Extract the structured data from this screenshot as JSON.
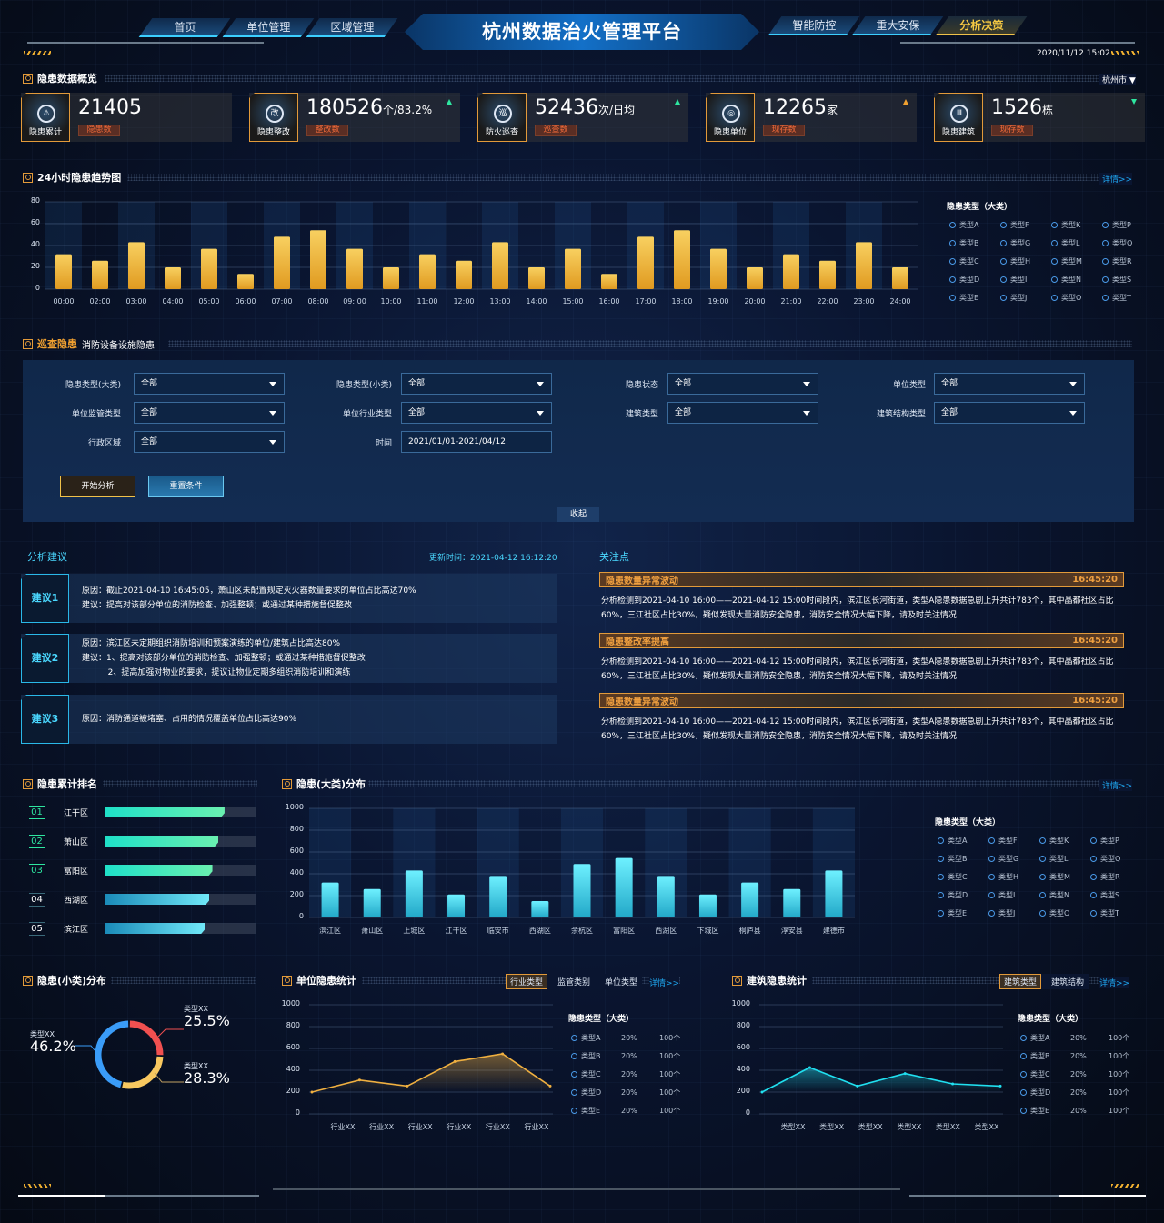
{
  "header": {
    "title": "杭州数据治火管理平台",
    "nav_left": [
      "首页",
      "单位管理",
      "区域管理"
    ],
    "nav_right": [
      "智能防控",
      "重大安保",
      "分析决策"
    ],
    "active_nav": "分析决策",
    "datetime": "2020/11/12 15:02"
  },
  "overview": {
    "title": "隐患数据概览",
    "city_select": "杭州市",
    "cards": [
      {
        "icon": "warning-icon",
        "glyph": "⚠",
        "label": "隐患累计",
        "value": "21405",
        "unit": "",
        "tag": "隐患数",
        "trend": ""
      },
      {
        "icon": "rectify-icon",
        "glyph": "改",
        "label": "隐患整改",
        "value": "180526",
        "unit": "个/83.2%",
        "tag": "整改数",
        "trend": "up"
      },
      {
        "icon": "patrol-icon",
        "glyph": "巡",
        "label": "防火巡查",
        "value": "52436",
        "unit": "次/日均",
        "tag": "巡查数",
        "trend": "up"
      },
      {
        "icon": "target-icon",
        "glyph": "◎",
        "label": "隐患单位",
        "value": "12265",
        "unit": "家",
        "tag": "现存数",
        "trend": "warn"
      },
      {
        "icon": "building-icon",
        "glyph": "Ⅲ",
        "label": "隐患建筑",
        "value": "1526",
        "unit": "栋",
        "tag": "现存数",
        "trend": "down"
      }
    ],
    "colors": {
      "accent": "#e29a3a",
      "up": "#2ee6a0",
      "warn": "#f0a030",
      "tag_text": "#f06a3a"
    }
  },
  "trend": {
    "title": "24小时隐患趋势图",
    "detail_link": "详情>>",
    "legend_title": "隐患类型（大类）",
    "legend": [
      "类型A",
      "类型B",
      "类型C",
      "类型D",
      "类型E",
      "类型F",
      "类型G",
      "类型H",
      "类型I",
      "类型J",
      "类型K",
      "类型L",
      "类型M",
      "类型N",
      "类型O",
      "类型P",
      "类型Q",
      "类型R",
      "类型S",
      "类型T"
    ]
  },
  "patrol": {
    "title": "巡查隐患",
    "subtitle": "消防设备设施隐患",
    "filters": [
      {
        "label": "隐患类型(大类)",
        "value": "全部",
        "type": "select"
      },
      {
        "label": "隐患类型(小类)",
        "value": "全部",
        "type": "select"
      },
      {
        "label": "隐患状态",
        "value": "全部",
        "type": "select"
      },
      {
        "label": "单位类型",
        "value": "全部",
        "type": "select"
      },
      {
        "label": "单位监管类型",
        "value": "全部",
        "type": "select"
      },
      {
        "label": "单位行业类型",
        "value": "全部",
        "type": "select"
      },
      {
        "label": "建筑类型",
        "value": "全部",
        "type": "select"
      },
      {
        "label": "建筑结构类型",
        "value": "全部",
        "type": "select"
      },
      {
        "label": "行政区域",
        "value": "全部",
        "type": "select"
      },
      {
        "label": "时间",
        "value": "2021/01/01-2021/04/12",
        "type": "input"
      }
    ],
    "start_button": "开始分析",
    "reset_button": "重置条件",
    "collapse": "收起"
  },
  "suggestions": {
    "title": "分析建议",
    "updated": "更新时间：2021-04-12 16:12:20",
    "items": [
      {
        "label": "建议1",
        "text": "原因：截止2021-04-10 16:45:05，萧山区未配置规定灭火器数量要求的单位占比高达70%\n建议：提高对该部分单位的消防检查、加强整顿；或通过某种措施督促整改"
      },
      {
        "label": "建议2",
        "text": "原因：滨江区未定期组织消防培训和预案演练的单位/建筑占比高达80%\n建议：1、提高对该部分单位的消防检查、加强整顿；或通过某种措施督促整改\n          2、提高加强对物业的要求，提议让物业定期多组织消防培训和演练"
      },
      {
        "label": "建议3",
        "text": "原因：消防通道被堵塞、占用的情况覆盖单位占比高达90%"
      }
    ]
  },
  "focus": {
    "title": "关注点",
    "items": [
      {
        "title": "隐患数量异常波动",
        "time": "16:45:20",
        "text": "分析检测到2021-04-10 16:00——2021-04-12 15:00时间段内，滨江区长河街道，类型A隐患数据急剧上升共计783个，其中晶都社区占比60%，三江社区占比30%，疑似发现大量消防安全隐患，消防安全情况大幅下降，请及时关注情况"
      },
      {
        "title": "隐患整改率提高",
        "time": "16:45:20",
        "text": "分析检测到2021-04-10 16:00——2021-04-12 15:00时间段内，滨江区长河街道，类型A隐患数据急剧上升共计783个，其中晶都社区占比60%，三江社区占比30%，疑似发现大量消防安全隐患，消防安全情况大幅下降，请及时关注情况"
      },
      {
        "title": "隐患数量异常波动",
        "time": "16:45:20",
        "text": "分析检测到2021-04-10 16:00——2021-04-12 15:00时间段内，滨江区长河街道，类型A隐患数据急剧上升共计783个，其中晶都社区占比60%，三江社区占比30%，疑似发现大量消防安全隐患，消防安全情况大幅下降，请及时关注情况"
      }
    ]
  },
  "ranking": {
    "title": "隐患累计排名",
    "items": [
      {
        "no": "01",
        "name": "江干区",
        "level": 0.79
      },
      {
        "no": "02",
        "name": "萧山区",
        "level": 0.75
      },
      {
        "no": "03",
        "name": "富阳区",
        "level": 0.71
      },
      {
        "no": "04",
        "name": "西湖区",
        "level": 0.69
      },
      {
        "no": "05",
        "name": "滨江区",
        "level": 0.66
      }
    ]
  },
  "district": {
    "title": "隐患(大类)分布",
    "detail_link": "详情>>",
    "legend_title": "隐患类型（大类）",
    "legend": [
      "类型A",
      "类型B",
      "类型C",
      "类型D",
      "类型E",
      "类型F",
      "类型G",
      "类型H",
      "类型I",
      "类型J",
      "类型K",
      "类型L",
      "类型M",
      "类型N",
      "类型O",
      "类型P",
      "类型Q",
      "类型R",
      "类型S",
      "类型T"
    ]
  },
  "small_type": {
    "title": "隐患(小类)分布"
  },
  "unit_stats": {
    "title": "单位隐患统计",
    "tabs": [
      "行业类型",
      "监管类别",
      "单位类型"
    ],
    "active_tab": 0,
    "detail_link": "详情>>",
    "legend_title": "隐患类型（大类）",
    "legend": [
      {
        "name": "类型A",
        "pct": "20%",
        "count": "100个"
      },
      {
        "name": "类型B",
        "pct": "20%",
        "count": "100个"
      },
      {
        "name": "类型C",
        "pct": "20%",
        "count": "100个"
      },
      {
        "name": "类型D",
        "pct": "20%",
        "count": "100个"
      },
      {
        "name": "类型E",
        "pct": "20%",
        "count": "100个"
      }
    ]
  },
  "building_stats": {
    "title": "建筑隐患统计",
    "tabs": [
      "建筑类型",
      "建筑结构"
    ],
    "active_tab": 0,
    "detail_link": "详情>>",
    "legend_title": "隐患类型（大类）",
    "legend": [
      {
        "name": "类型A",
        "pct": "20%",
        "count": "100个"
      },
      {
        "name": "类型B",
        "pct": "20%",
        "count": "100个"
      },
      {
        "name": "类型C",
        "pct": "20%",
        "count": "100个"
      },
      {
        "name": "类型D",
        "pct": "20%",
        "count": "100个"
      },
      {
        "name": "类型E",
        "pct": "20%",
        "count": "100个"
      }
    ]
  },
  "chart_data": [
    {
      "type": "bar",
      "categories": [
        "00:00",
        "02:00",
        "03:00",
        "04:00",
        "05:00",
        "06:00",
        "07:00",
        "08:00",
        "09: 00",
        "10:00",
        "11:00",
        "12:00",
        "13:00",
        "14:00",
        "15:00",
        "16:00",
        "17:00",
        "18:00",
        "19:00",
        "20:00",
        "21:00",
        "22:00",
        "23:00",
        "24:00"
      ],
      "values": [
        32,
        26,
        43,
        20,
        37,
        14,
        48,
        54,
        37,
        20,
        32,
        26,
        43,
        20,
        37,
        14,
        48,
        54,
        37,
        20,
        32,
        26,
        43,
        20
      ],
      "ylim": [
        0,
        80
      ],
      "yticks": [
        0,
        20,
        40,
        60,
        80
      ],
      "grid": true,
      "color": "#f0b030"
    },
    {
      "type": "bar",
      "categories": [
        "滨江区",
        "萧山区",
        "上城区",
        "江干区",
        "临安市",
        "西湖区",
        "余杭区",
        "富阳区",
        "西湖区",
        "下城区",
        "桐庐县",
        "淳安县",
        "建德市"
      ],
      "values": [
        320,
        260,
        430,
        210,
        380,
        150,
        490,
        545,
        380,
        210,
        320,
        260,
        430
      ],
      "ylim": [
        0,
        1000
      ],
      "yticks": [
        0,
        200,
        400,
        600,
        800,
        1000
      ],
      "grid": true,
      "color": "#3ad0ea"
    },
    {
      "type": "pie",
      "donut": true,
      "slices": [
        {
          "label": "类型XX",
          "value": 25.5,
          "display": "25.5%",
          "color": "#f05050"
        },
        {
          "label": "类型XX",
          "value": 28.3,
          "display": "28.3%",
          "color": "#f8c860"
        },
        {
          "label": "类型XX",
          "value": 46.2,
          "display": "46.2%",
          "color": "#3a9cf8"
        }
      ]
    },
    {
      "type": "area",
      "categories": [
        "行业XX",
        "行业XX",
        "行业XX",
        "行业XX",
        "行业XX",
        "行业XX"
      ],
      "values": [
        200,
        310,
        255,
        480,
        550,
        255
      ],
      "ylim": [
        0,
        1000
      ],
      "yticks": [
        0,
        200,
        400,
        600,
        800,
        1000
      ],
      "grid": true,
      "color": "#f0b040"
    },
    {
      "type": "area",
      "categories": [
        "类型XX",
        "类型XX",
        "类型XX",
        "类型XX",
        "类型XX",
        "类型XX"
      ],
      "values": [
        200,
        425,
        255,
        370,
        275,
        255
      ],
      "ylim": [
        0,
        1000
      ],
      "yticks": [
        0,
        200,
        400,
        600,
        800,
        1000
      ],
      "grid": true,
      "color": "#20e0f0"
    }
  ]
}
